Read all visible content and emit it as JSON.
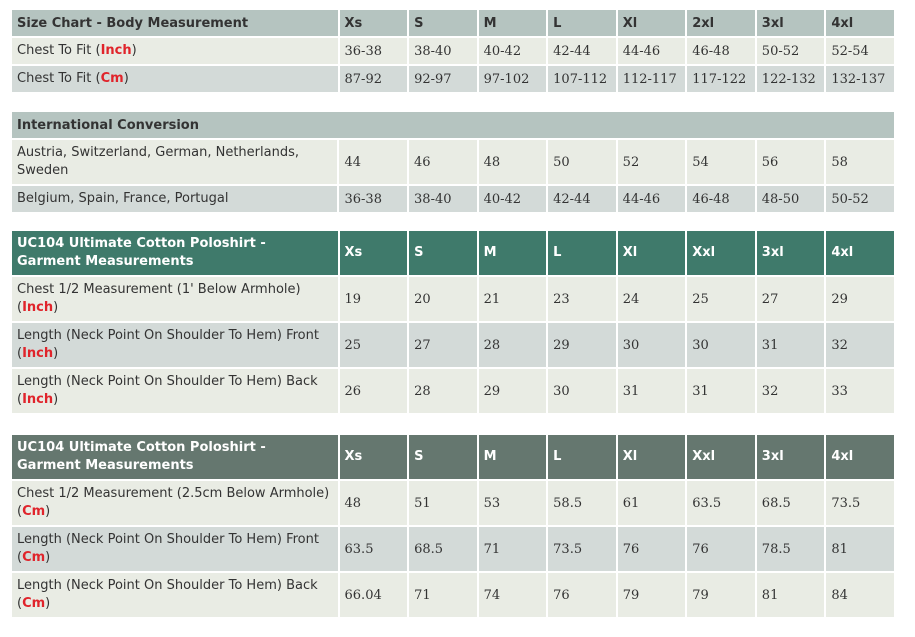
{
  "body_measurement": {
    "header": {
      "title": "Size Chart - Body Measurement",
      "sizes": [
        "Xs",
        "S",
        "M",
        "L",
        "Xl",
        "2xl",
        "3xl",
        "4xl"
      ]
    },
    "rows": [
      {
        "label": "Chest To Fit (",
        "unit": "Inch",
        "close": ")",
        "values": [
          "36-38",
          "38-40",
          "40-42",
          "42-44",
          "44-46",
          "46-48",
          "50-52",
          "52-54"
        ]
      },
      {
        "label": "Chest To Fit (",
        "unit": "Cm",
        "close": ")",
        "values": [
          "87-92",
          "92-97",
          "97-102",
          "107-112",
          "112-117",
          "117-122",
          "122-132",
          "132-137"
        ]
      }
    ]
  },
  "international": {
    "title": "International Conversion",
    "rows": [
      {
        "label": "Austria, Switzerland, German, Netherlands, Sweden",
        "values": [
          "44",
          "46",
          "48",
          "50",
          "52",
          "54",
          "56",
          "58"
        ]
      },
      {
        "label": "Belgium, Spain, France, Portugal",
        "values": [
          "36-38",
          "38-40",
          "40-42",
          "42-44",
          "44-46",
          "46-48",
          "48-50",
          "50-52"
        ]
      }
    ]
  },
  "garment_inch": {
    "header": {
      "title": "UC104 Ultimate Cotton Poloshirt - Garment Measurements",
      "sizes": [
        "Xs",
        "S",
        "M",
        "L",
        "Xl",
        "Xxl",
        "3xl",
        "4xl"
      ]
    },
    "rows": [
      {
        "label": "Chest 1/2 Measurement (1' Below Armhole) (",
        "unit": "Inch",
        "close": ")",
        "values": [
          "19",
          "20",
          "21",
          "23",
          "24",
          "25",
          "27",
          "29"
        ]
      },
      {
        "label": "Length (Neck Point On Shoulder To Hem) Front (",
        "unit": "Inch",
        "close": ")",
        "values": [
          "25",
          "27",
          "28",
          "29",
          "30",
          "30",
          "31",
          "32"
        ]
      },
      {
        "label": "Length (Neck Point On Shoulder To Hem) Back (",
        "unit": "Inch",
        "close": ")",
        "values": [
          "26",
          "28",
          "29",
          "30",
          "31",
          "31",
          "32",
          "33"
        ]
      }
    ]
  },
  "garment_cm": {
    "header": {
      "title": "UC104 Ultimate Cotton Poloshirt - Garment Measurements",
      "sizes": [
        "Xs",
        "S",
        "M",
        "L",
        "Xl",
        "Xxl",
        "3xl",
        "4xl"
      ]
    },
    "rows": [
      {
        "label": "Chest 1/2 Measurement (2.5cm Below Armhole) (",
        "unit": "Cm",
        "close": ")",
        "values": [
          "48",
          "51",
          "53",
          "58.5",
          "61",
          "63.5",
          "68.5",
          "73.5"
        ]
      },
      {
        "label": "Length (Neck Point On Shoulder To Hem) Front (",
        "unit": "Cm",
        "close": ")",
        "values": [
          "63.5",
          "68.5",
          "71",
          "73.5",
          "76",
          "76",
          "78.5",
          "81"
        ]
      },
      {
        "label": "Length (Neck Point On Shoulder To Hem) Back (",
        "unit": "Cm",
        "close": ")",
        "values": [
          "66.04",
          "71",
          "74",
          "76",
          "79",
          "79",
          "81",
          "84"
        ]
      }
    ]
  }
}
